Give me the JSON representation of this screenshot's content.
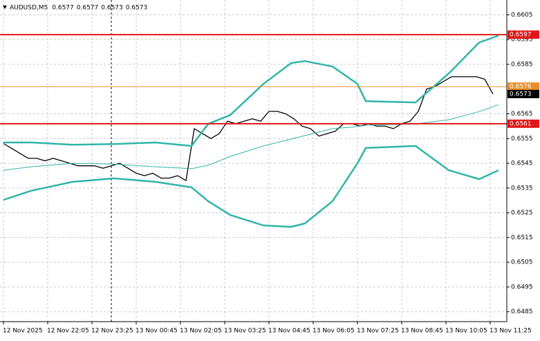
{
  "chart_data": {
    "type": "line",
    "symbol": "AUDUSD,M5",
    "ohlc": [
      0.6577,
      0.6577,
      0.6573,
      0.6573
    ],
    "xlim": [
      -1.25,
      182
    ],
    "ylim": [
      0.6481,
      0.6611
    ],
    "yticks": [
      0.6605,
      0.6595,
      0.6585,
      0.6565,
      0.6555,
      0.6545,
      0.6535,
      0.6525,
      0.6515,
      0.6505,
      0.6495,
      0.6485
    ],
    "xticks": [
      {
        "value": 0,
        "label": "12 Nov 2025"
      },
      {
        "value": 16,
        "label": "12 Nov 22:05"
      },
      {
        "value": 32,
        "label": "12 Nov 23:25"
      },
      {
        "value": 48,
        "label": "13 Nov 00:45"
      },
      {
        "value": 64,
        "label": "13 Nov 02:05"
      },
      {
        "value": 80,
        "label": "13 Nov 03:25"
      },
      {
        "value": 96,
        "label": "13 Nov 04:45"
      },
      {
        "value": 112,
        "label": "13 Nov 06:05"
      },
      {
        "value": 128,
        "label": "13 Nov 07:25"
      },
      {
        "value": 144,
        "label": "13 Nov 08:45"
      },
      {
        "value": 160,
        "label": "13 Nov 10:05"
      },
      {
        "value": 176,
        "label": "13 Nov 11:25"
      }
    ],
    "grid": true,
    "series": [
      {
        "color": "#000000",
        "width": 1.3,
        "x": [
          0,
          3,
          6,
          9,
          12,
          15,
          18,
          21,
          24,
          27,
          30,
          33,
          36,
          39,
          42,
          45,
          48,
          51,
          54,
          57,
          60,
          63,
          66,
          69,
          72,
          75,
          78,
          81,
          84,
          87,
          90,
          93,
          96,
          99,
          102,
          105,
          108,
          111,
          114,
          117,
          120,
          123,
          126,
          129,
          132,
          135,
          138,
          141,
          144,
          147,
          150,
          153,
          156,
          159,
          162,
          165,
          168,
          171,
          174,
          177
        ],
        "values": [
          0.6553,
          0.6551,
          0.6549,
          0.6547,
          0.6547,
          0.6546,
          0.6547,
          0.6546,
          0.6545,
          0.6544,
          0.6544,
          0.6544,
          0.6543,
          0.6544,
          0.6545,
          0.6543,
          0.6541,
          0.654,
          0.6541,
          0.6539,
          0.6539,
          0.654,
          0.6538,
          0.6559,
          0.6557,
          0.6555,
          0.6557,
          0.6562,
          0.6561,
          0.6562,
          0.6563,
          0.6562,
          0.6566,
          0.6566,
          0.6565,
          0.6563,
          0.656,
          0.6559,
          0.6556,
          0.6557,
          0.6558,
          0.6561,
          0.6561,
          0.656,
          0.6561,
          0.656,
          0.656,
          0.6559,
          0.6561,
          0.6562,
          0.6566,
          0.6575,
          0.6576,
          0.6578,
          0.658,
          0.658,
          0.658,
          0.658,
          0.6579,
          0.6573
        ]
      },
      {
        "color": "#2fb5a8",
        "width": 2.5,
        "x": [
          0,
          10,
          25,
          40,
          55,
          68,
          74,
          82,
          94,
          104,
          109,
          119,
          128,
          131,
          149,
          161,
          172,
          179
        ],
        "values": [
          0.65534,
          0.65534,
          0.65525,
          0.65528,
          0.65534,
          0.6552,
          0.65609,
          0.65645,
          0.65771,
          0.65855,
          0.65863,
          0.65841,
          0.65771,
          0.65701,
          0.65696,
          0.65813,
          0.65938,
          0.65966
        ]
      },
      {
        "color": "#2fb5a8",
        "width": 1,
        "x": [
          0,
          10,
          25,
          40,
          55,
          68,
          74,
          82,
          94,
          104,
          109,
          119,
          128,
          131,
          149,
          161,
          172,
          179
        ],
        "values": [
          0.65422,
          0.65436,
          0.6545,
          0.65447,
          0.65436,
          0.65428,
          0.65442,
          0.65478,
          0.6552,
          0.65548,
          0.65562,
          0.6559,
          0.65598,
          0.65604,
          0.65609,
          0.65626,
          0.65659,
          0.65687
        ]
      },
      {
        "color": "#2fb5a8",
        "width": 2.5,
        "x": [
          0,
          10,
          25,
          40,
          55,
          68,
          74,
          82,
          94,
          104,
          109,
          119,
          128,
          131,
          149,
          161,
          172,
          179
        ],
        "values": [
          0.65302,
          0.65339,
          0.65375,
          0.65389,
          0.65375,
          0.65353,
          0.65297,
          0.65241,
          0.65199,
          0.65193,
          0.65207,
          0.65297,
          0.6545,
          0.65512,
          0.6552,
          0.65422,
          0.65386,
          0.65422
        ]
      }
    ],
    "levels": [
      {
        "value": 0.6597,
        "color": "#e01818",
        "width": 2
      },
      {
        "value": 0.6561,
        "color": "#e01818",
        "width": 2
      },
      {
        "value": 0.6576,
        "color": "#e8902a",
        "width": 1
      },
      {
        "value": 0.6573,
        "color": "#000000",
        "width": 0
      }
    ]
  }
}
